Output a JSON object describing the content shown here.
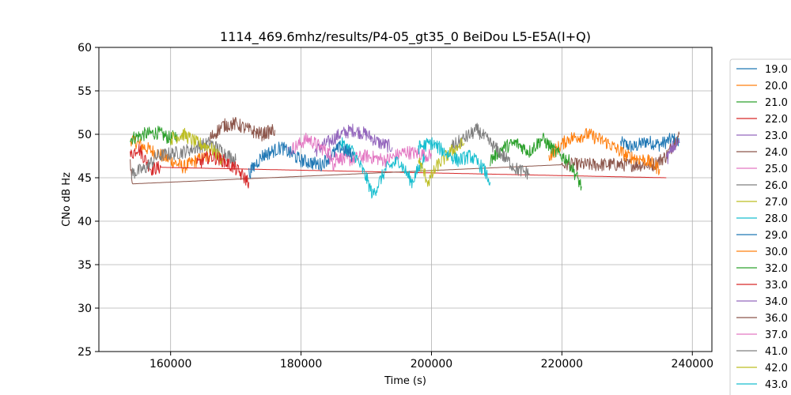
{
  "chart_data": {
    "type": "line",
    "title": "1114_469.6mhz/results/P4-05_gt35_0 BeiDou L5-E5A(I+Q)",
    "xlabel": "Time (s)",
    "ylabel": "CNo dB Hz",
    "xlim": [
      149000,
      243000
    ],
    "ylim": [
      25,
      60
    ],
    "xticks": [
      160000,
      180000,
      200000,
      220000,
      240000
    ],
    "xtick_labels": [
      "160000",
      "180000",
      "200000",
      "220000",
      "240000"
    ],
    "yticks": [
      25,
      30,
      35,
      40,
      45,
      50,
      55,
      60
    ],
    "ytick_labels": [
      "25",
      "30",
      "35",
      "40",
      "45",
      "50",
      "55",
      "60"
    ],
    "grid": true,
    "legend_position": "right-outside",
    "series": [
      {
        "name": "19.0",
        "color": "#1f77b4",
        "points": [
          [
            229000,
            49.0
          ],
          [
            231000,
            48.5
          ],
          [
            233000,
            49.2
          ],
          [
            235000,
            48.8
          ],
          [
            237000,
            49.5
          ],
          [
            238000,
            49.0
          ]
        ]
      },
      {
        "name": "20.0",
        "color": "#ff7f0e",
        "points": [
          [
            153800,
            49.5
          ],
          [
            156000,
            48.5
          ],
          [
            158000,
            47.8
          ],
          [
            160000,
            47.0
          ],
          [
            162000,
            46.2
          ],
          [
            164000,
            47.0
          ],
          [
            166000,
            47.5
          ]
        ]
      },
      {
        "name": "21.0",
        "color": "#2ca02c",
        "points": [
          [
            153800,
            49.5
          ],
          [
            156000,
            50.0
          ],
          [
            158000,
            50.2
          ],
          [
            160000,
            49.5
          ],
          [
            161000,
            50.0
          ]
        ]
      },
      {
        "name": "22.0",
        "color": "#d62728",
        "points": [
          [
            153800,
            47.5
          ],
          [
            155000,
            48.5
          ],
          [
            157000,
            46.0
          ],
          [
            158500,
            46.2
          ],
          [
            236000,
            45.0
          ]
        ]
      },
      {
        "name": "23.0",
        "color": "#9467bd",
        "points": [
          [
            182000,
            48.0
          ],
          [
            184000,
            49.0
          ],
          [
            186000,
            50.0
          ],
          [
            188000,
            50.5
          ],
          [
            190000,
            50.0
          ],
          [
            192000,
            49.0
          ],
          [
            194000,
            48.5
          ]
        ]
      },
      {
        "name": "24.0",
        "color": "#8c564b",
        "points": [
          [
            153800,
            46.5
          ],
          [
            154200,
            44.3
          ],
          [
            220000,
            46.5
          ],
          [
            234000,
            46.5
          ],
          [
            236000,
            47.5
          ],
          [
            238000,
            50.0
          ]
        ]
      },
      {
        "name": "25.0",
        "color": "#e377c2",
        "points": [
          [
            178000,
            48.0
          ],
          [
            181000,
            49.5
          ],
          [
            184000,
            48.0
          ],
          [
            187000,
            47.0
          ],
          [
            190000,
            47.5
          ],
          [
            193000,
            47.0
          ],
          [
            196000,
            48.0
          ],
          [
            200000,
            47.5
          ]
        ]
      },
      {
        "name": "26.0",
        "color": "#7f7f7f",
        "points": [
          [
            154000,
            45.5
          ],
          [
            156000,
            46.0
          ],
          [
            158000,
            47.5
          ],
          [
            162000,
            48.0
          ],
          [
            166000,
            49.0
          ],
          [
            170000,
            47.0
          ]
        ]
      },
      {
        "name": "27.0",
        "color": "#bcbd22",
        "points": [
          [
            160000,
            49.5
          ],
          [
            162000,
            50.0
          ],
          [
            164000,
            49.0
          ],
          [
            166000,
            48.5
          ],
          [
            168000,
            47.0
          ]
        ]
      },
      {
        "name": "28.0",
        "color": "#17becf",
        "points": [
          [
            186000,
            49.0
          ],
          [
            188000,
            48.0
          ],
          [
            190000,
            45.0
          ],
          [
            191000,
            43.0
          ],
          [
            193000,
            46.0
          ],
          [
            195000,
            47.0
          ],
          [
            197000,
            44.5
          ],
          [
            199000,
            47.5
          ]
        ]
      },
      {
        "name": "29.0",
        "color": "#1f77b4",
        "points": [
          [
            172000,
            45.5
          ],
          [
            174000,
            47.5
          ],
          [
            177000,
            48.5
          ],
          [
            180000,
            47.0
          ],
          [
            183000,
            46.5
          ],
          [
            186000,
            48.5
          ],
          [
            188000,
            47.5
          ]
        ]
      },
      {
        "name": "30.0",
        "color": "#ff7f0e",
        "points": [
          [
            218000,
            47.5
          ],
          [
            221000,
            49.5
          ],
          [
            224000,
            50.0
          ],
          [
            227000,
            49.0
          ],
          [
            230000,
            47.5
          ],
          [
            233000,
            47.0
          ],
          [
            235000,
            46.0
          ]
        ]
      },
      {
        "name": "32.0",
        "color": "#2ca02c",
        "points": [
          [
            209000,
            47.0
          ],
          [
            211000,
            48.5
          ],
          [
            213000,
            49.0
          ],
          [
            215000,
            48.0
          ],
          [
            217000,
            49.5
          ],
          [
            219000,
            48.0
          ],
          [
            221000,
            47.0
          ],
          [
            223000,
            44.0
          ]
        ]
      },
      {
        "name": "33.0",
        "color": "#d62728",
        "points": [
          [
            164000,
            46.5
          ],
          [
            166000,
            47.5
          ],
          [
            168000,
            47.0
          ],
          [
            170000,
            46.0
          ],
          [
            172000,
            44.5
          ]
        ]
      },
      {
        "name": "34.0",
        "color": "#9467bd",
        "points": [
          [
            236000,
            47.0
          ],
          [
            237000,
            48.5
          ],
          [
            238000,
            49.0
          ]
        ]
      },
      {
        "name": "36.0",
        "color": "#8c564b",
        "points": [
          [
            166000,
            49.5
          ],
          [
            168000,
            51.0
          ],
          [
            170000,
            51.2
          ],
          [
            172000,
            50.5
          ],
          [
            174000,
            50.0
          ],
          [
            176000,
            50.5
          ]
        ]
      },
      {
        "name": "37.0",
        "color": "#e377c2",
        "points": [
          [
            184000,
            47.5
          ],
          [
            185000,
            46.5
          ],
          [
            186000,
            47.0
          ]
        ]
      },
      {
        "name": "41.0",
        "color": "#7f7f7f",
        "points": [
          [
            203000,
            48.5
          ],
          [
            205000,
            49.5
          ],
          [
            207000,
            50.5
          ],
          [
            209000,
            49.0
          ],
          [
            211000,
            47.5
          ],
          [
            213000,
            46.0
          ],
          [
            215000,
            45.5
          ]
        ]
      },
      {
        "name": "42.0",
        "color": "#bcbd22",
        "points": [
          [
            198000,
            47.0
          ],
          [
            199500,
            44.5
          ],
          [
            201000,
            46.5
          ],
          [
            203000,
            48.0
          ],
          [
            205000,
            49.0
          ]
        ]
      },
      {
        "name": "43.0",
        "color": "#17becf",
        "points": [
          [
            198000,
            48.5
          ],
          [
            200000,
            49.0
          ],
          [
            202000,
            48.0
          ],
          [
            204000,
            47.0
          ],
          [
            206000,
            47.5
          ],
          [
            208000,
            46.0
          ],
          [
            209000,
            44.5
          ]
        ]
      }
    ]
  }
}
